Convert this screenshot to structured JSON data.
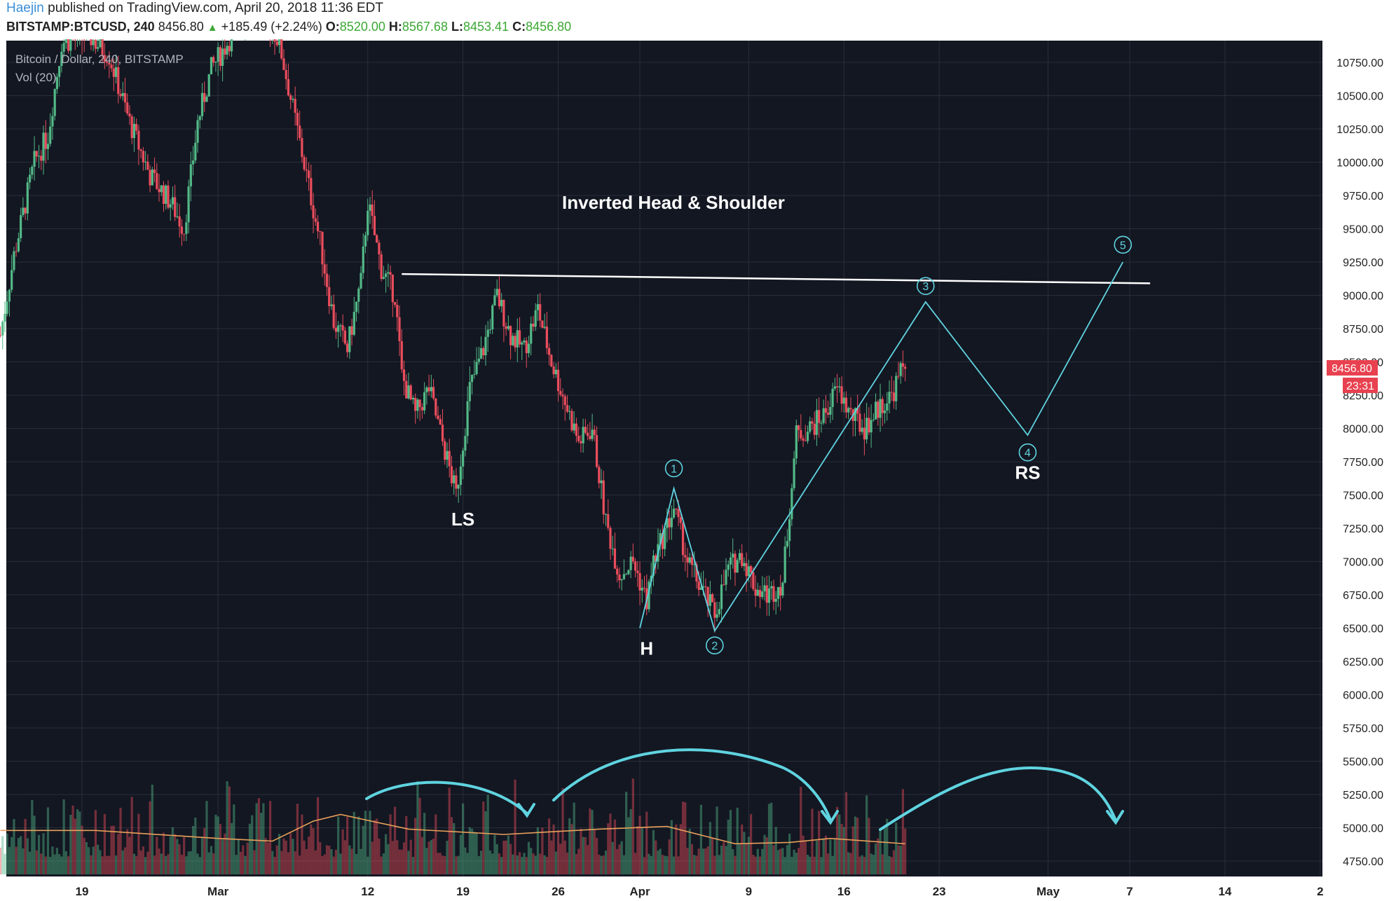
{
  "header": {
    "author": "Haejin",
    "published_text": "published on TradingView.com, April 20, 2018 11:36 EDT",
    "symbol_line": "BITSTAMP:BTCUSD, 240",
    "price": "8456.80",
    "change_arrow": "▲",
    "change": "+185.49 (+2.24%)",
    "o_label": "O:",
    "o_value": "8520.00",
    "h_label": "H:",
    "h_value": "8567.68",
    "l_label": "L:",
    "l_value": "8453.41",
    "c_label": "C:",
    "c_value": "8456.80"
  },
  "chart_data": {
    "type": "candlestick",
    "title": "Bitcoin / Dollar, 240, BITSTAMP",
    "volume_label": "Vol (20)",
    "annotation_title": "Inverted Head & Shoulder",
    "price_axis": {
      "ticks": [
        10750,
        10500,
        10250,
        10000,
        9750,
        9500,
        9250,
        9000,
        8750,
        8500,
        8250,
        8000,
        7750,
        7500,
        7250,
        7000,
        6750,
        6500,
        6250,
        6000,
        5750,
        5500,
        5250,
        5000,
        4750
      ],
      "tick_labels": [
        "10750.00",
        "10500.00",
        "10250.00",
        "10000.00",
        "9750.00",
        "9500.00",
        "9250.00",
        "9000.00",
        "8750.00",
        "8500.00",
        "8250.00",
        "8000.00",
        "7750.00",
        "7500.00",
        "7250.00",
        "7000.00",
        "6750.00",
        "6500.00",
        "6250.00",
        "6000.00",
        "5750.00",
        "5500.00",
        "5250.00",
        "5000.00",
        "4750.00"
      ],
      "range": [
        4600,
        10950
      ]
    },
    "time_axis": {
      "ticks": [
        {
          "date": "2018-02-19",
          "label": "19"
        },
        {
          "date": "2018-03-01",
          "label": "Mar"
        },
        {
          "date": "2018-03-12",
          "label": "12"
        },
        {
          "date": "2018-03-19",
          "label": "19"
        },
        {
          "date": "2018-03-26",
          "label": "26"
        },
        {
          "date": "2018-04-01",
          "label": "Apr"
        },
        {
          "date": "2018-04-09",
          "label": "9"
        },
        {
          "date": "2018-04-16",
          "label": "16"
        },
        {
          "date": "2018-04-23",
          "label": "23"
        },
        {
          "date": "2018-05-01",
          "label": "May"
        },
        {
          "date": "2018-05-07",
          "label": "7"
        },
        {
          "date": "2018-05-14",
          "label": "14"
        },
        {
          "date": "2018-05-21",
          "label": "2"
        }
      ]
    },
    "last_price": {
      "label": "8456.80",
      "value": 8456.8,
      "countdown": "23:31"
    },
    "price_path": [
      [
        "2018-02-13T00:00",
        8700
      ],
      [
        "2018-02-14T00:00",
        9300
      ],
      [
        "2018-02-15T12:00",
        10000
      ],
      [
        "2018-02-16T12:00",
        10200
      ],
      [
        "2018-02-17T12:00",
        10900
      ],
      [
        "2018-02-19T12:00",
        10950
      ],
      [
        "2018-02-21T00:00",
        10800
      ],
      [
        "2018-02-22T12:00",
        10300
      ],
      [
        "2018-02-24T00:00",
        9900
      ],
      [
        "2018-02-25T12:00",
        9700
      ],
      [
        "2018-02-26T12:00",
        9500
      ],
      [
        "2018-02-27T12:00",
        10300
      ],
      [
        "2018-02-28T12:00",
        10700
      ],
      [
        "2018-03-02T00:00",
        10950
      ],
      [
        "2018-03-04T00:00",
        11200
      ],
      [
        "2018-03-05T12:00",
        10900
      ],
      [
        "2018-03-06T12:00",
        10400
      ],
      [
        "2018-03-07T12:00",
        9900
      ],
      [
        "2018-03-08T12:00",
        9400
      ],
      [
        "2018-03-09T12:00",
        8800
      ],
      [
        "2018-03-10T12:00",
        8600
      ],
      [
        "2018-03-11T12:00",
        9100
      ],
      [
        "2018-03-12T00:00",
        9700
      ],
      [
        "2018-03-13T00:00",
        9200
      ],
      [
        "2018-03-14T00:00",
        9000
      ],
      [
        "2018-03-14T12:00",
        8400
      ],
      [
        "2018-03-15T12:00",
        8100
      ],
      [
        "2018-03-16T12:00",
        8300
      ],
      [
        "2018-03-17T12:00",
        7900
      ],
      [
        "2018-03-18T12:00",
        7500
      ],
      [
        "2018-03-19T12:00",
        8300
      ],
      [
        "2018-03-20T12:00",
        8600
      ],
      [
        "2018-03-21T12:00",
        9000
      ],
      [
        "2018-03-22T12:00",
        8700
      ],
      [
        "2018-03-23T12:00",
        8600
      ],
      [
        "2018-03-24T12:00",
        8900
      ],
      [
        "2018-03-25T12:00",
        8500
      ],
      [
        "2018-03-26T12:00",
        8200
      ],
      [
        "2018-03-27T12:00",
        7900
      ],
      [
        "2018-03-28T12:00",
        8000
      ],
      [
        "2018-03-29T12:00",
        7300
      ],
      [
        "2018-03-30T12:00",
        6900
      ],
      [
        "2018-03-31T12:00",
        7000
      ],
      [
        "2018-04-01T12:00",
        6700
      ],
      [
        "2018-04-02T00:00",
        7000
      ],
      [
        "2018-04-03T12:00",
        7400
      ],
      [
        "2018-04-04T12:00",
        7000
      ],
      [
        "2018-04-05T12:00",
        6800
      ],
      [
        "2018-04-06T12:00",
        6600
      ],
      [
        "2018-04-07T12:00",
        6950
      ],
      [
        "2018-04-08T12:00",
        7050
      ],
      [
        "2018-04-09T12:00",
        6800
      ],
      [
        "2018-04-10T12:00",
        6750
      ],
      [
        "2018-04-11T12:00",
        6850
      ],
      [
        "2018-04-12T12:00",
        7950
      ],
      [
        "2018-04-13T12:00",
        8000
      ],
      [
        "2018-04-14T12:00",
        8100
      ],
      [
        "2018-04-15T12:00",
        8300
      ],
      [
        "2018-04-16T12:00",
        8100
      ],
      [
        "2018-04-17T12:00",
        8000
      ],
      [
        "2018-04-18T12:00",
        8150
      ],
      [
        "2018-04-19T12:00",
        8250
      ],
      [
        "2018-04-20T12:00",
        8500
      ]
    ],
    "volume_path": [
      [
        "2018-02-13T00:00",
        4980
      ],
      [
        "2018-02-20T00:00",
        4980
      ],
      [
        "2018-03-01T00:00",
        4920
      ],
      [
        "2018-03-05T00:00",
        4900
      ],
      [
        "2018-03-08T00:00",
        5050
      ],
      [
        "2018-03-10T00:00",
        5100
      ],
      [
        "2018-03-15T00:00",
        4990
      ],
      [
        "2018-03-22T00:00",
        4950
      ],
      [
        "2018-03-29T00:00",
        4990
      ],
      [
        "2018-04-03T00:00",
        5010
      ],
      [
        "2018-04-08T00:00",
        4880
      ],
      [
        "2018-04-12T00:00",
        4890
      ],
      [
        "2018-04-15T00:00",
        4920
      ],
      [
        "2018-04-20T12:00",
        4880
      ]
    ],
    "neckline": [
      [
        "2018-03-14T12:00",
        9160
      ],
      [
        "2018-05-08T12:00",
        9090
      ]
    ],
    "projection": [
      [
        "2018-04-01T00:00",
        6500
      ],
      [
        "2018-04-03T12:00",
        7550
      ],
      [
        "2018-04-06T12:00",
        6480
      ],
      [
        "2018-04-22T00:00",
        8950
      ],
      [
        "2018-04-29T12:00",
        7950
      ],
      [
        "2018-05-06T12:00",
        9250
      ]
    ],
    "wave_labels": [
      {
        "label": "1",
        "date": "2018-04-03T12:00",
        "value": 7700
      },
      {
        "label": "2",
        "date": "2018-04-06T12:00",
        "value": 6370
      },
      {
        "label": "3",
        "date": "2018-04-22T00:00",
        "value": 9070
      },
      {
        "label": "4",
        "date": "2018-04-29T12:00",
        "value": 7820
      },
      {
        "label": "5",
        "date": "2018-05-06T12:00",
        "value": 9380
      }
    ],
    "pattern_labels": [
      {
        "label": "LS",
        "date": "2018-03-19T00:00",
        "value": 7270
      },
      {
        "label": "H",
        "date": "2018-04-01T12:00",
        "value": 6300
      },
      {
        "label": "RS",
        "date": "2018-04-29T12:00",
        "value": 7620
      }
    ],
    "colors": {
      "background": "#131722",
      "grid": "#2a2e39",
      "up": "#53b987",
      "down": "#eb4d5c",
      "volume_ma": "#e8a05a",
      "annotation": "#5fd4e0",
      "neckline": "#ffffff",
      "axis_panel": "#ffffff",
      "axis_text": "#222222",
      "last_price_tag": "#e8414f"
    }
  }
}
